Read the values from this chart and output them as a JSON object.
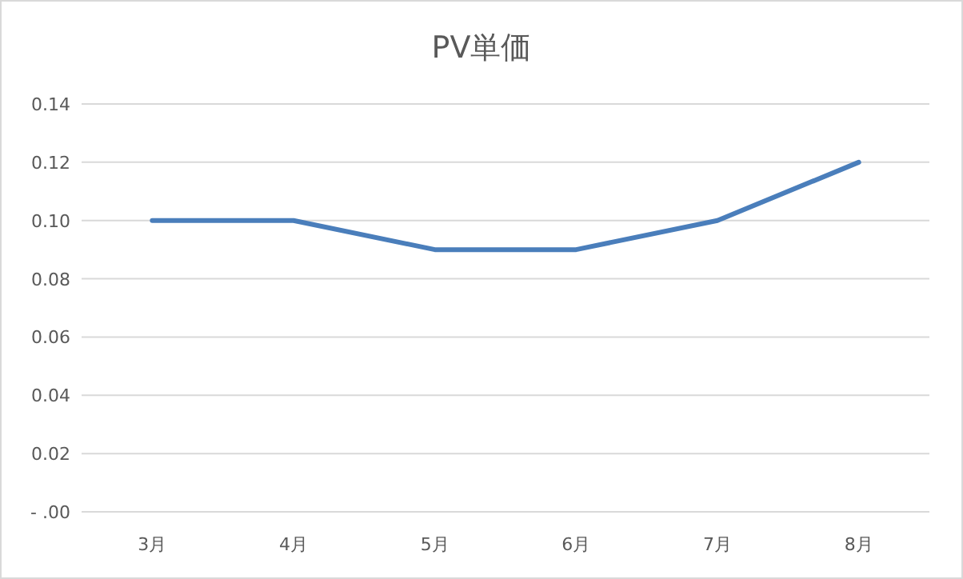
{
  "chart_data": {
    "type": "line",
    "title": "PV単価",
    "categories": [
      "3月",
      "4月",
      "5月",
      "6月",
      "7月",
      "8月"
    ],
    "series": [
      {
        "color": "#4a7ebb",
        "values": [
          0.1,
          0.1,
          0.09,
          0.09,
          0.1,
          0.12
        ]
      }
    ],
    "ylim": [
      0,
      0.14
    ],
    "yticks": [
      {
        "value": 0,
        "label": "- .00"
      },
      {
        "value": 0.02,
        "label": "0.02"
      },
      {
        "value": 0.04,
        "label": "0.04"
      },
      {
        "value": 0.06,
        "label": "0.06"
      },
      {
        "value": 0.08,
        "label": "0.08"
      },
      {
        "value": 0.1,
        "label": "0.10"
      },
      {
        "value": 0.12,
        "label": "0.12"
      },
      {
        "value": 0.14,
        "label": "0.14"
      }
    ],
    "grid": "y",
    "marker": "none",
    "line_style": "solid"
  }
}
